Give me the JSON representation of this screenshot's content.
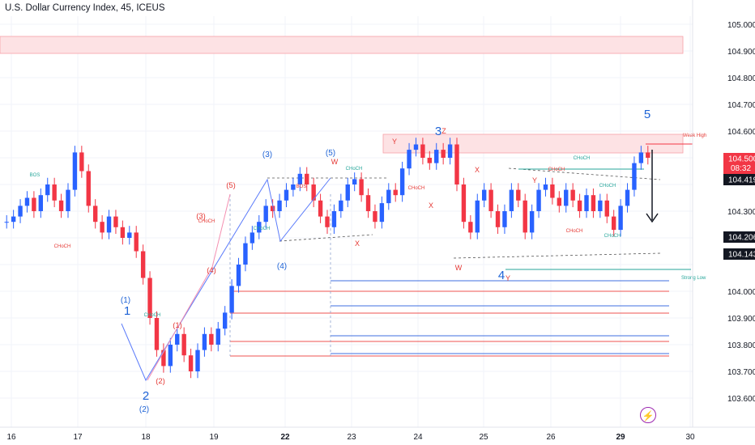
{
  "title": "U.S. Dollar Currency Index, 45, ICEUS",
  "colors": {
    "up": "#2962ff",
    "down": "#f23645",
    "zone_fill": "#fde2e4",
    "zone_stroke": "#f7a1a8",
    "wave": "#1e63d6",
    "red_wave": "#e53935",
    "teal": "#26a69a",
    "grid": "#f0f3fa"
  },
  "price_axis": {
    "ticks": [
      "105.000",
      "104.900",
      "104.800",
      "104.700",
      "104.600",
      "104.300",
      "104.000",
      "103.900",
      "103.800",
      "103.700",
      "103.600"
    ],
    "tags": [
      {
        "text": "104.500",
        "bg": "#f23645",
        "fg": "#ffffff",
        "sub": "08:32"
      },
      {
        "text": "104.419",
        "bg": "#131722",
        "fg": "#ffffff"
      },
      {
        "text": "104.206",
        "bg": "#131722",
        "fg": "#ffffff"
      },
      {
        "text": "104.143",
        "bg": "#131722",
        "fg": "#ffffff"
      }
    ]
  },
  "time_axis": {
    "labels": [
      "16",
      "17",
      "18",
      "19",
      "22",
      "23",
      "24",
      "25",
      "26",
      "29",
      "30"
    ]
  },
  "annotations": {
    "wave_big": [
      "1",
      "2",
      "3",
      "4",
      "5"
    ],
    "wave_sub": [
      "(1)",
      "(2)",
      "(3)",
      "(4)",
      "(5)"
    ],
    "wave_sub_red": [
      "(1)",
      "(2)",
      "(3)",
      "(4)",
      "(5)"
    ],
    "wxy": [
      "W",
      "X",
      "Y",
      "Z",
      "W",
      "X",
      "Y",
      "X",
      "Y"
    ],
    "struct": [
      "BOS",
      "CHoCH",
      "CHoCH",
      "CHoCH",
      "CHoCH",
      "BOS",
      "CHoCH",
      "CHoCH",
      "CHoCH",
      "CHoCH",
      "CHoCH",
      "CHoCH",
      "CHoCH"
    ],
    "weak_high": "Weak High",
    "strong_low": "Strong Low"
  },
  "chart_data": {
    "type": "candlestick",
    "title": "U.S. Dollar Currency Index, 45, ICEUS",
    "ylim": [
      103.55,
      105.05
    ],
    "x_labels": [
      "16",
      "17",
      "18",
      "19",
      "22",
      "23",
      "24",
      "25",
      "26",
      "29",
      "30"
    ],
    "last_price": 104.5,
    "close_series": [
      104.26,
      104.28,
      104.32,
      104.35,
      104.3,
      104.36,
      104.4,
      104.34,
      104.3,
      104.38,
      104.52,
      104.45,
      104.32,
      104.26,
      104.22,
      104.28,
      104.24,
      104.2,
      104.22,
      104.15,
      104.05,
      103.9,
      103.78,
      103.72,
      103.8,
      103.84,
      103.76,
      103.7,
      103.78,
      103.84,
      103.8,
      103.86,
      103.92,
      104.02,
      104.1,
      104.18,
      104.22,
      104.26,
      104.32,
      104.3,
      104.34,
      104.38,
      104.4,
      104.44,
      104.4,
      104.34,
      104.28,
      104.24,
      104.3,
      104.34,
      104.4,
      104.42,
      104.36,
      104.3,
      104.26,
      104.33,
      104.38,
      104.36,
      104.46,
      104.53,
      104.55,
      104.5,
      104.48,
      104.53,
      104.5,
      104.55,
      104.4,
      104.26,
      104.22,
      104.34,
      104.38,
      104.3,
      104.24,
      104.3,
      104.38,
      104.34,
      104.22,
      104.3,
      104.38,
      104.4,
      104.35,
      104.32,
      104.38,
      104.34,
      104.3,
      104.36,
      104.3,
      104.34,
      104.28,
      104.23,
      104.32,
      104.38,
      104.48,
      104.52,
      104.5
    ]
  }
}
